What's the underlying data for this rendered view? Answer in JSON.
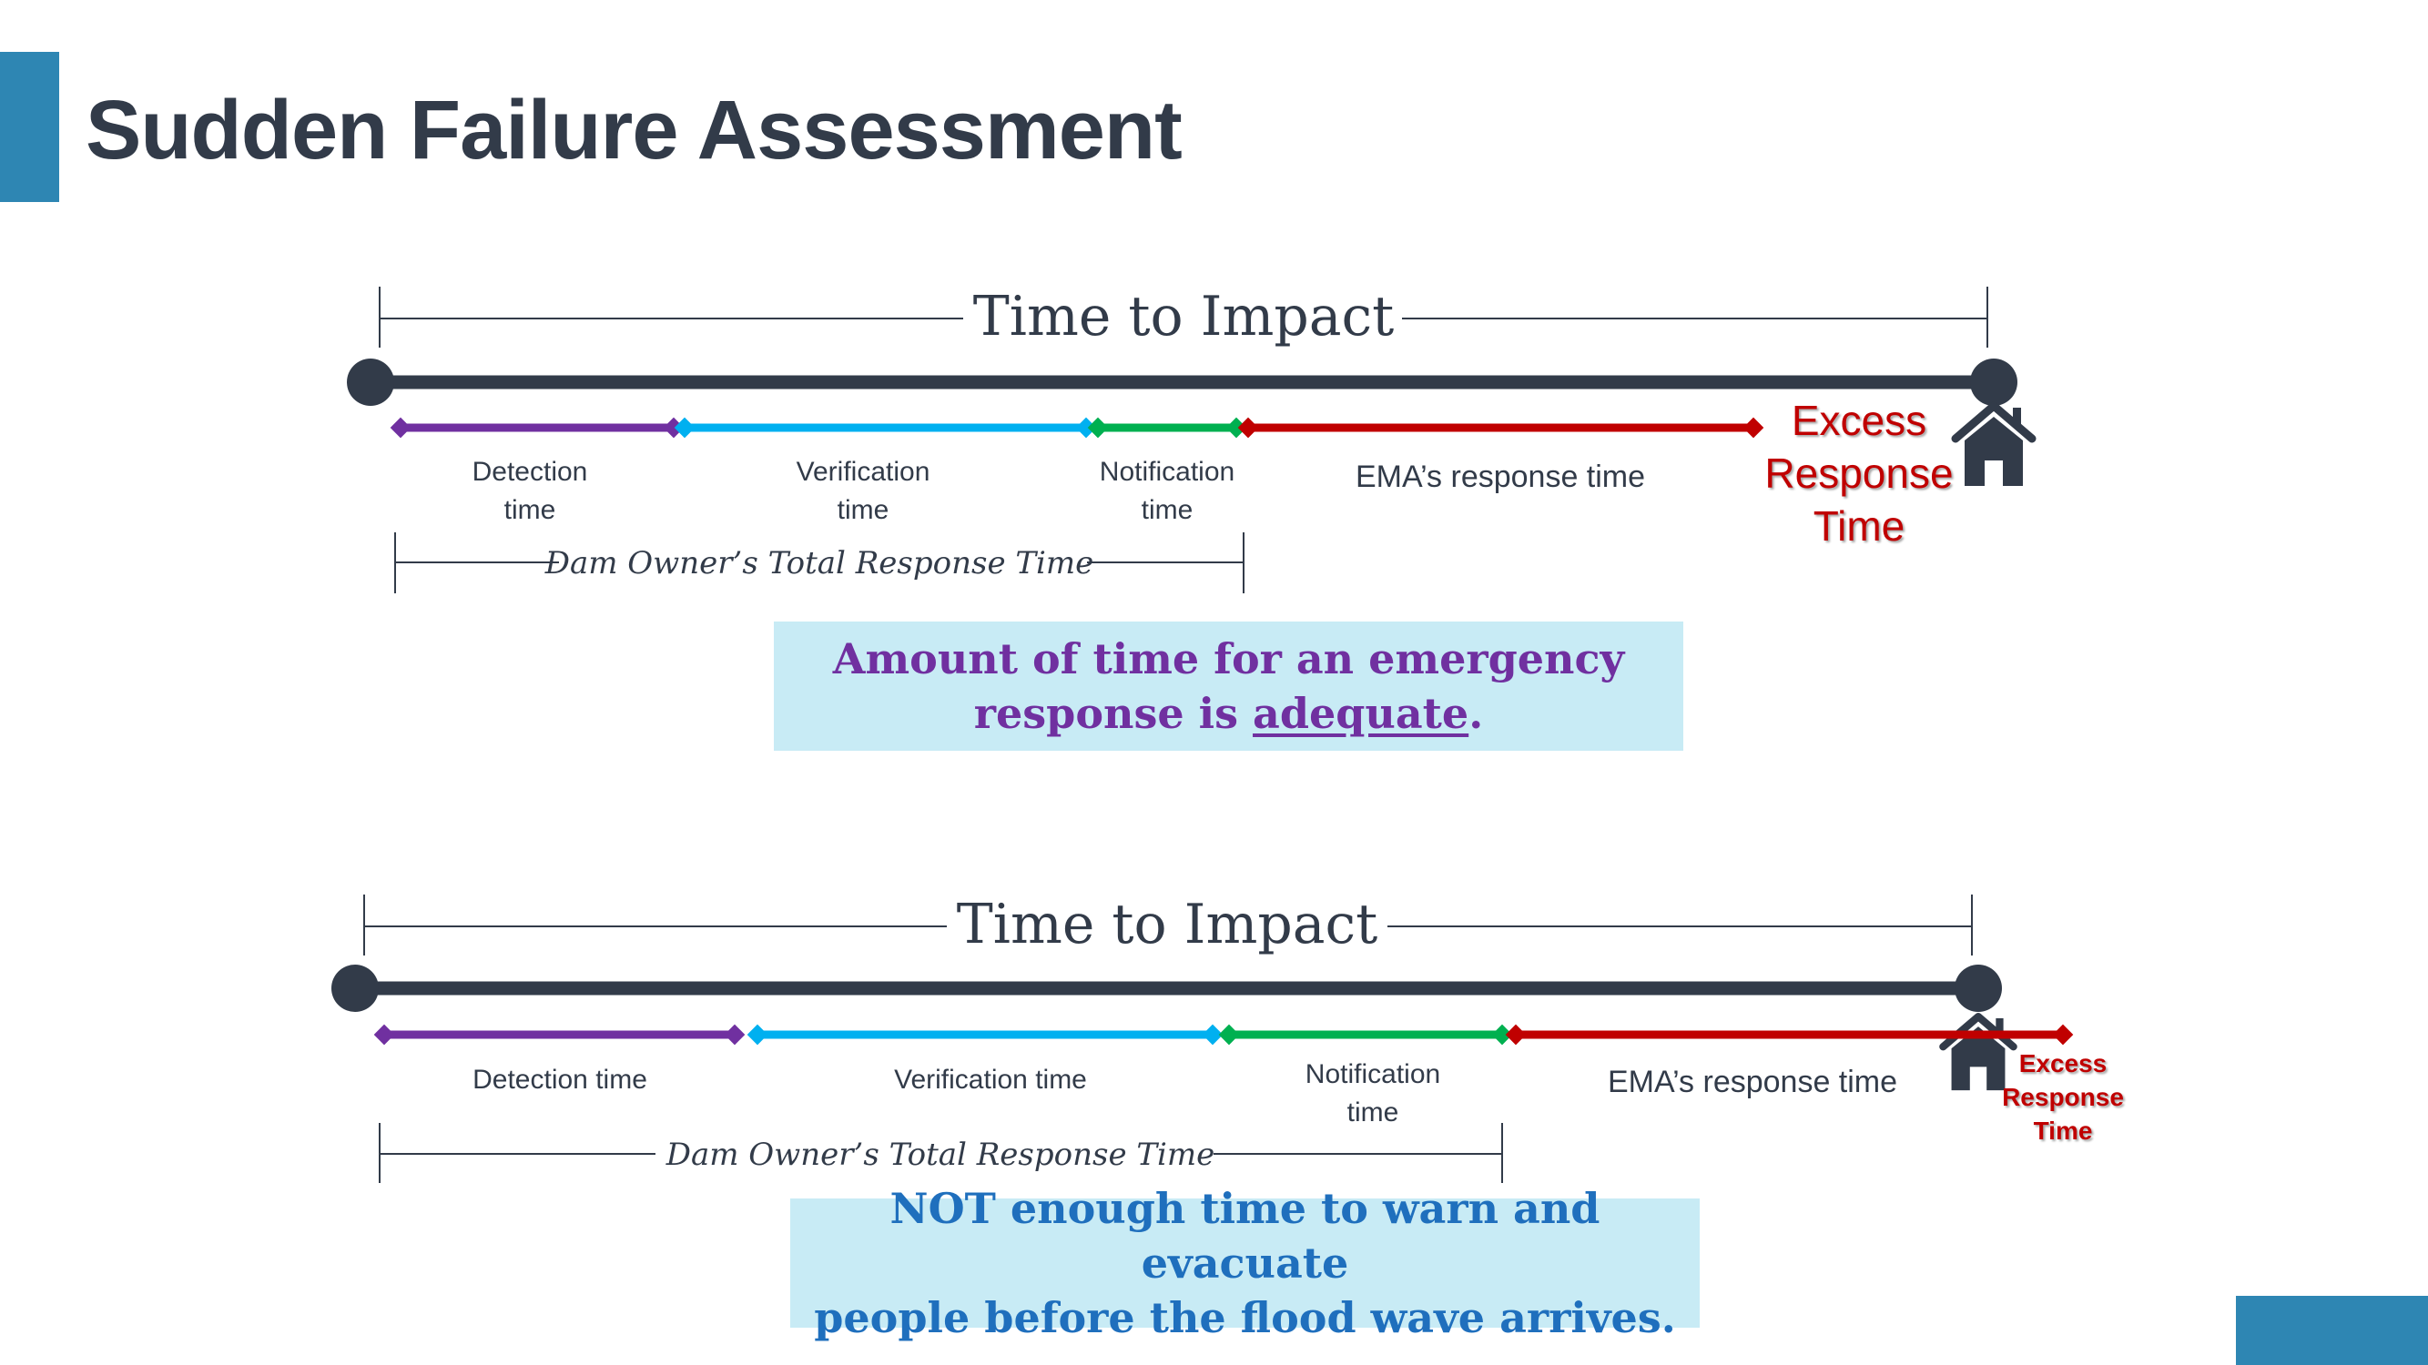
{
  "page": {
    "title": "Sudden Failure Assessment",
    "accent_color": "#2e86b3"
  },
  "colors": {
    "main_line": "#323b49",
    "detection": "#7030a0",
    "verification": "#00b0f0",
    "notification": "#00b050",
    "ema": "#c00000",
    "excess_text": "#c00000",
    "callout_bg": "#c8ebf5"
  },
  "scenarios": [
    {
      "impact_label": "Time to Impact",
      "segments": [
        {
          "label_lines": [
            "Detection",
            "time"
          ]
        },
        {
          "label_lines": [
            "Verification",
            "time"
          ]
        },
        {
          "label_lines": [
            "Notification",
            "time"
          ]
        },
        {
          "label_lines": [
            "EMA’s response time"
          ]
        }
      ],
      "owner_label": "Dam Owner’s Total Response Time",
      "excess_label_lines": [
        "Excess",
        "Response",
        "Time"
      ],
      "house_icon": "house-icon",
      "message": {
        "before": "Amount of time for an emergency",
        "line2_before": "response is ",
        "emphasis": "adequate",
        "after": "."
      }
    },
    {
      "impact_label": "Time to Impact",
      "segments": [
        {
          "label_lines": [
            "Detection time"
          ]
        },
        {
          "label_lines": [
            "Verification time"
          ]
        },
        {
          "label_lines": [
            "Notification",
            "time"
          ]
        },
        {
          "label_lines": [
            "EMA’s response time"
          ]
        }
      ],
      "owner_label": "Dam Owner’s Total Response Time",
      "excess_label_lines": [
        "Excess",
        "Response",
        "Time"
      ],
      "house_icon": "house-icon",
      "message": {
        "line1": "NOT enough time to warn and evacuate",
        "line2": "people before the flood wave arrives."
      }
    }
  ]
}
